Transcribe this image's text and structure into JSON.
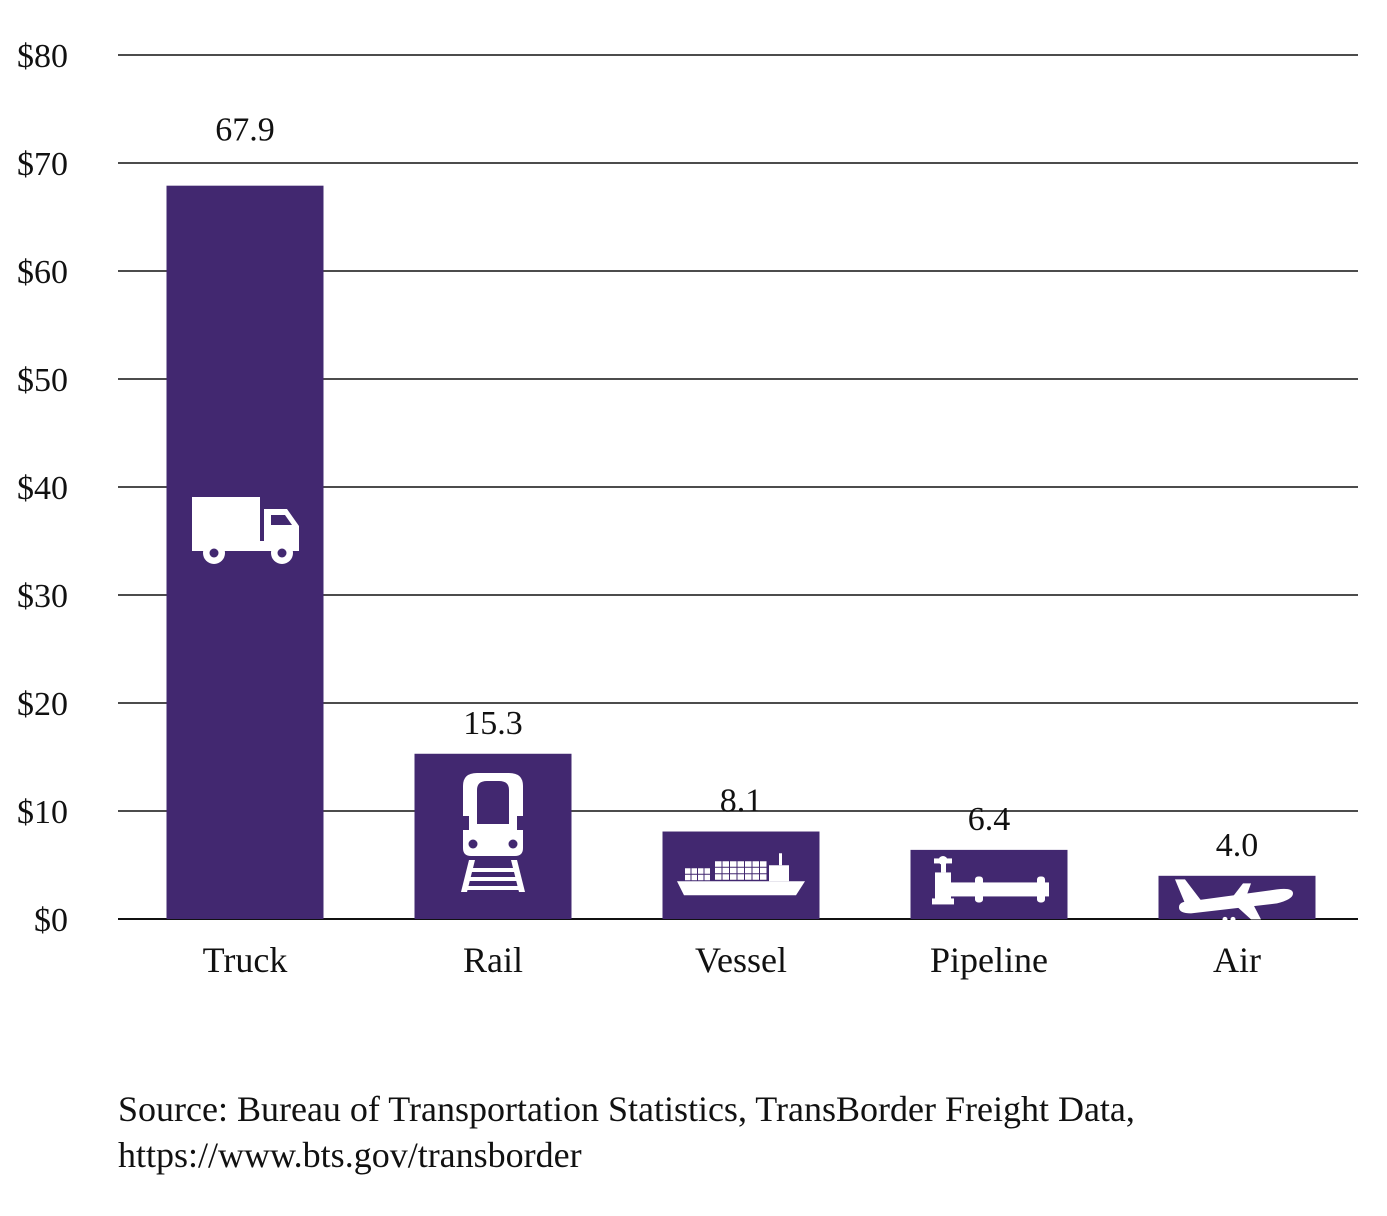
{
  "chart_data": {
    "type": "bar",
    "categories": [
      "Truck",
      "Rail",
      "Vessel",
      "Pipeline",
      "Air"
    ],
    "values": [
      67.9,
      15.3,
      8.1,
      6.4,
      4.0
    ],
    "value_labels": [
      "67.9",
      "15.3",
      "8.1",
      "6.4",
      "4.0"
    ],
    "ylim": [
      0,
      80
    ],
    "yticks": [
      0,
      10,
      20,
      30,
      40,
      50,
      60,
      70,
      80
    ],
    "ytick_labels": [
      "$0",
      "$10",
      "$20",
      "$30",
      "$40",
      "$50",
      "$60",
      "$70",
      "$80"
    ],
    "grid": true,
    "bar_icons": [
      "truck-icon",
      "train-icon",
      "ship-icon",
      "pipeline-icon",
      "airplane-icon"
    ],
    "title": "",
    "xlabel": "",
    "ylabel": ""
  },
  "colors": {
    "bar": "#422870",
    "icon": "#ffffff",
    "grid": "#111111",
    "text": "#111111"
  },
  "source": {
    "line1": "Source: Bureau of Transportation Statistics, TransBorder Freight Data,",
    "line2": "https://www.bts.gov/transborder"
  }
}
